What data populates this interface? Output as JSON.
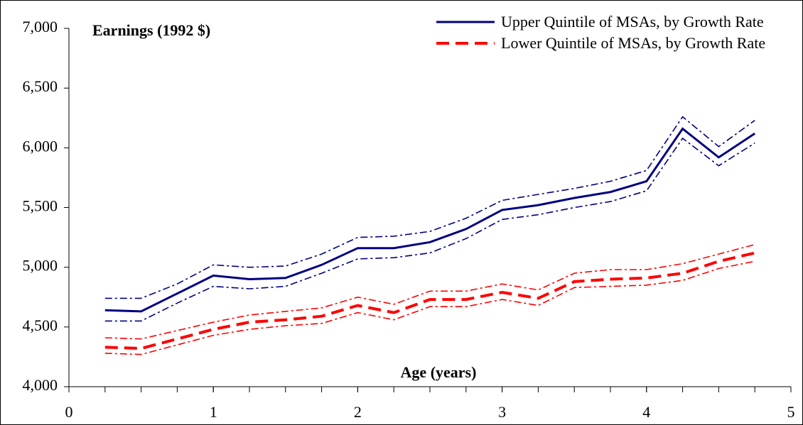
{
  "chart_data": {
    "type": "line",
    "title": "Earnings (1992 $)",
    "x_label": "Age (years)",
    "x": [
      0.25,
      0.5,
      0.75,
      1.0,
      1.25,
      1.5,
      1.75,
      2.0,
      2.25,
      2.5,
      2.75,
      3.0,
      3.25,
      3.5,
      3.75,
      4.0,
      4.25,
      4.5,
      4.75
    ],
    "series": [
      {
        "name": "Upper Quintile of MSAs, by Growth Rate",
        "color": "#000080",
        "style": "solid",
        "values": [
          4640,
          4630,
          4780,
          4930,
          4900,
          4910,
          5020,
          5160,
          5160,
          5210,
          5320,
          5480,
          5520,
          5580,
          5630,
          5720,
          6160,
          5920,
          6120
        ],
        "ci_upper": [
          4740,
          4740,
          4860,
          5020,
          5000,
          5010,
          5110,
          5250,
          5260,
          5300,
          5410,
          5560,
          5610,
          5660,
          5720,
          5810,
          6260,
          6010,
          6230
        ],
        "ci_lower": [
          4550,
          4550,
          4700,
          4840,
          4820,
          4840,
          4950,
          5070,
          5080,
          5120,
          5240,
          5400,
          5440,
          5500,
          5550,
          5640,
          6080,
          5850,
          6040
        ]
      },
      {
        "name": "Lower Quintile of MSAs, by Growth Rate",
        "color": "#ff0000",
        "style": "dashed",
        "values": [
          4330,
          4320,
          4400,
          4480,
          4540,
          4560,
          4590,
          4680,
          4620,
          4730,
          4730,
          4790,
          4740,
          4880,
          4900,
          4910,
          4950,
          5050,
          5120
        ],
        "ci_upper": [
          4410,
          4400,
          4470,
          4540,
          4600,
          4630,
          4660,
          4750,
          4690,
          4800,
          4800,
          4860,
          4810,
          4950,
          4980,
          4980,
          5030,
          5110,
          5190
        ],
        "ci_lower": [
          4280,
          4270,
          4350,
          4430,
          4480,
          4510,
          4530,
          4620,
          4560,
          4670,
          4670,
          4730,
          4680,
          4830,
          4840,
          4850,
          4890,
          4990,
          5050
        ]
      }
    ],
    "xlim": [
      0,
      5
    ],
    "xticks": [
      0,
      1,
      2,
      3,
      4,
      5
    ],
    "ylim": [
      4000,
      7000
    ],
    "yticks": [
      {
        "value": 4000,
        "label": "4,000"
      },
      {
        "value": 4500,
        "label": "4,500"
      },
      {
        "value": 5000,
        "label": "5,000"
      },
      {
        "value": 5500,
        "label": "5,500"
      },
      {
        "value": 6000,
        "label": "6,000"
      },
      {
        "value": 6500,
        "label": "6,500"
      },
      {
        "value": 7000,
        "label": "7,000"
      }
    ],
    "legend": "top-right"
  }
}
